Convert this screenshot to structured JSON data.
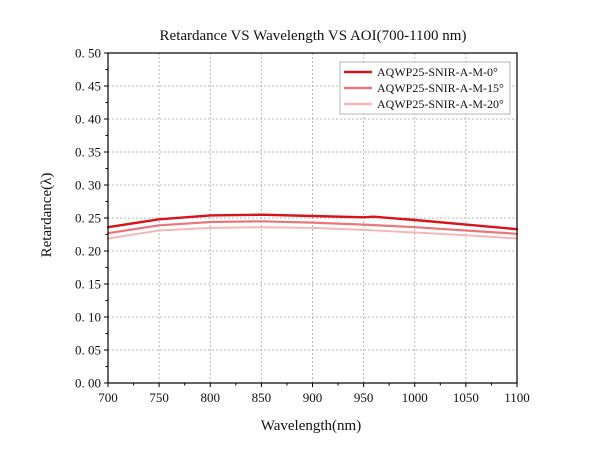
{
  "chart_data": {
    "type": "line",
    "title": "Retardance VS Wavelength VS AOI(700-1100 nm)",
    "xlabel": "Wavelength(nm)",
    "ylabel": "Retardance(λ)",
    "xlim": [
      700,
      1100
    ],
    "ylim": [
      0.0,
      0.5
    ],
    "xticks": [
      700,
      750,
      800,
      850,
      900,
      950,
      1000,
      1050,
      1100
    ],
    "yticks": [
      0.0,
      0.05,
      0.1,
      0.15,
      0.2,
      0.25,
      0.3,
      0.35,
      0.4,
      0.45,
      0.5
    ],
    "xtick_labels": [
      "700",
      "750",
      "800",
      "850",
      "900",
      "950",
      "1000",
      "1050",
      "1100"
    ],
    "ytick_labels": [
      "0. 00",
      "0. 05",
      "0. 10",
      "0. 15",
      "0. 20",
      "0. 25",
      "0. 30",
      "0. 35",
      "0. 40",
      "0. 45",
      "0. 50"
    ],
    "grid": true,
    "legend_position": "top-right",
    "series": [
      {
        "name": "AQWP25-SNIR-A-M-0°",
        "color": "#d7141b",
        "x": [
          700,
          750,
          800,
          850,
          900,
          950,
          960,
          1000,
          1050,
          1100
        ],
        "y": [
          0.236,
          0.248,
          0.254,
          0.255,
          0.253,
          0.251,
          0.252,
          0.247,
          0.24,
          0.233
        ]
      },
      {
        "name": "AQWP25-SNIR-A-M-15°",
        "color": "#e8777b",
        "x": [
          700,
          750,
          800,
          850,
          900,
          950,
          1000,
          1050,
          1100
        ],
        "y": [
          0.227,
          0.239,
          0.244,
          0.245,
          0.243,
          0.24,
          0.236,
          0.231,
          0.226
        ]
      },
      {
        "name": "AQWP25-SNIR-A-M-20°",
        "color": "#f4b8b9",
        "x": [
          700,
          750,
          800,
          850,
          900,
          950,
          1000,
          1050,
          1100
        ],
        "y": [
          0.219,
          0.231,
          0.235,
          0.236,
          0.235,
          0.232,
          0.228,
          0.224,
          0.219
        ]
      }
    ]
  }
}
